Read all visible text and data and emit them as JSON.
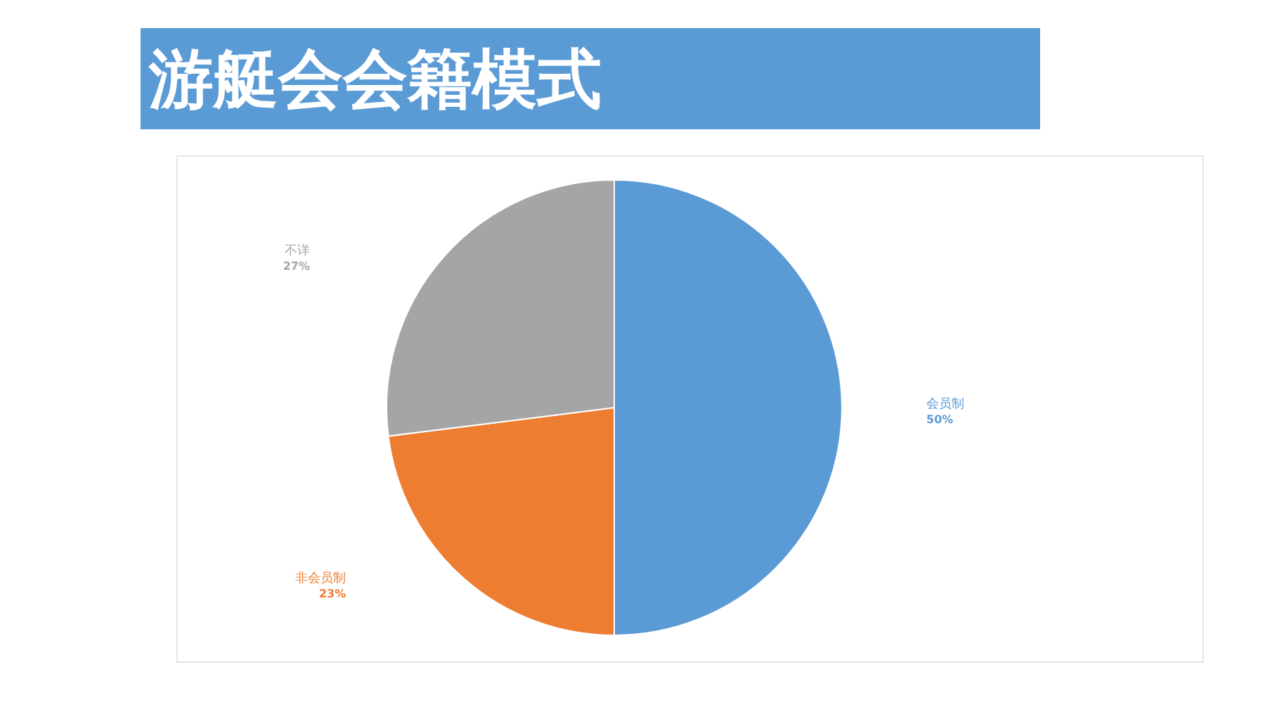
{
  "chart_data": {
    "type": "pie",
    "title": "游艇会会籍模式",
    "categories": [
      "会员制",
      "非会员制",
      "不详"
    ],
    "values": [
      50,
      23,
      27
    ],
    "colors": [
      "#5b9bd5",
      "#ed7d31",
      "#a5a5a5"
    ],
    "value_labels": [
      "50%",
      "23%",
      "27%"
    ]
  }
}
